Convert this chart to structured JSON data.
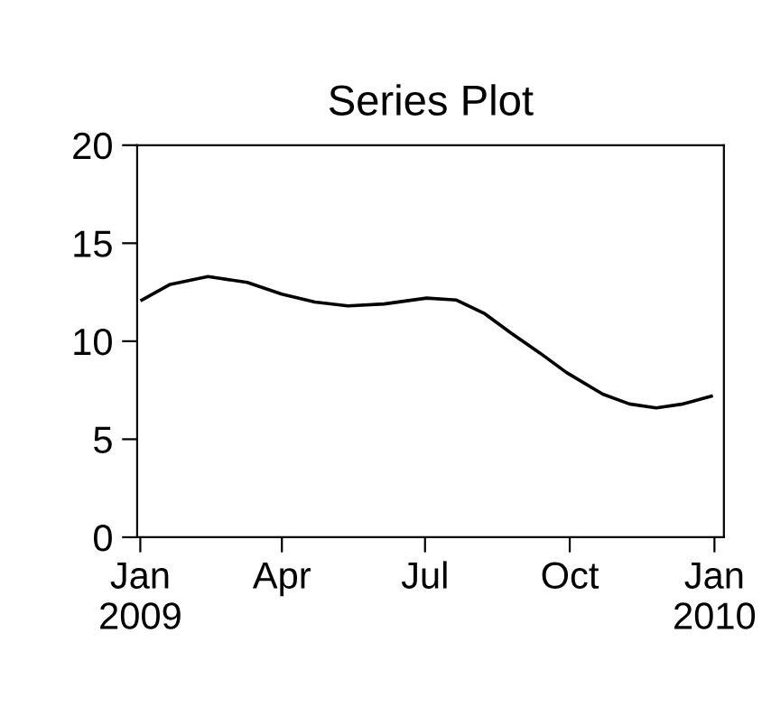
{
  "chart_data": {
    "type": "line",
    "title": "Series Plot",
    "x": [
      "2009-01-02",
      "2009-01-20",
      "2009-02-13",
      "2009-03-10",
      "2009-04-01",
      "2009-04-22",
      "2009-05-13",
      "2009-06-05",
      "2009-07-02",
      "2009-07-21",
      "2009-08-08",
      "2009-08-25",
      "2009-09-12",
      "2009-09-29",
      "2009-10-22",
      "2009-11-08",
      "2009-11-25",
      "2009-12-12",
      "2009-12-30"
    ],
    "series": [
      {
        "color": "#000000",
        "values": [
          12.1,
          12.9,
          13.3,
          13.0,
          12.4,
          12.0,
          11.8,
          11.9,
          12.2,
          12.1,
          11.4,
          10.4,
          9.4,
          8.4,
          7.3,
          6.8,
          6.6,
          6.8,
          7.2
        ]
      }
    ],
    "xlim": [
      "2008-12-30",
      "2010-01-07"
    ],
    "xticks": [
      {
        "value": "2009-01-01",
        "label": "Jan\n2009"
      },
      {
        "value": "2009-04-01",
        "label": "Apr"
      },
      {
        "value": "2009-07-01",
        "label": "Jul"
      },
      {
        "value": "2009-10-01",
        "label": "Oct"
      },
      {
        "value": "2010-01-01",
        "label": "Jan\n2010"
      }
    ],
    "ylim": [
      0,
      20
    ],
    "yticks": [
      0,
      5,
      10,
      15,
      20
    ],
    "grid": false,
    "legend": false,
    "marker": "none",
    "line_style": "solid"
  }
}
